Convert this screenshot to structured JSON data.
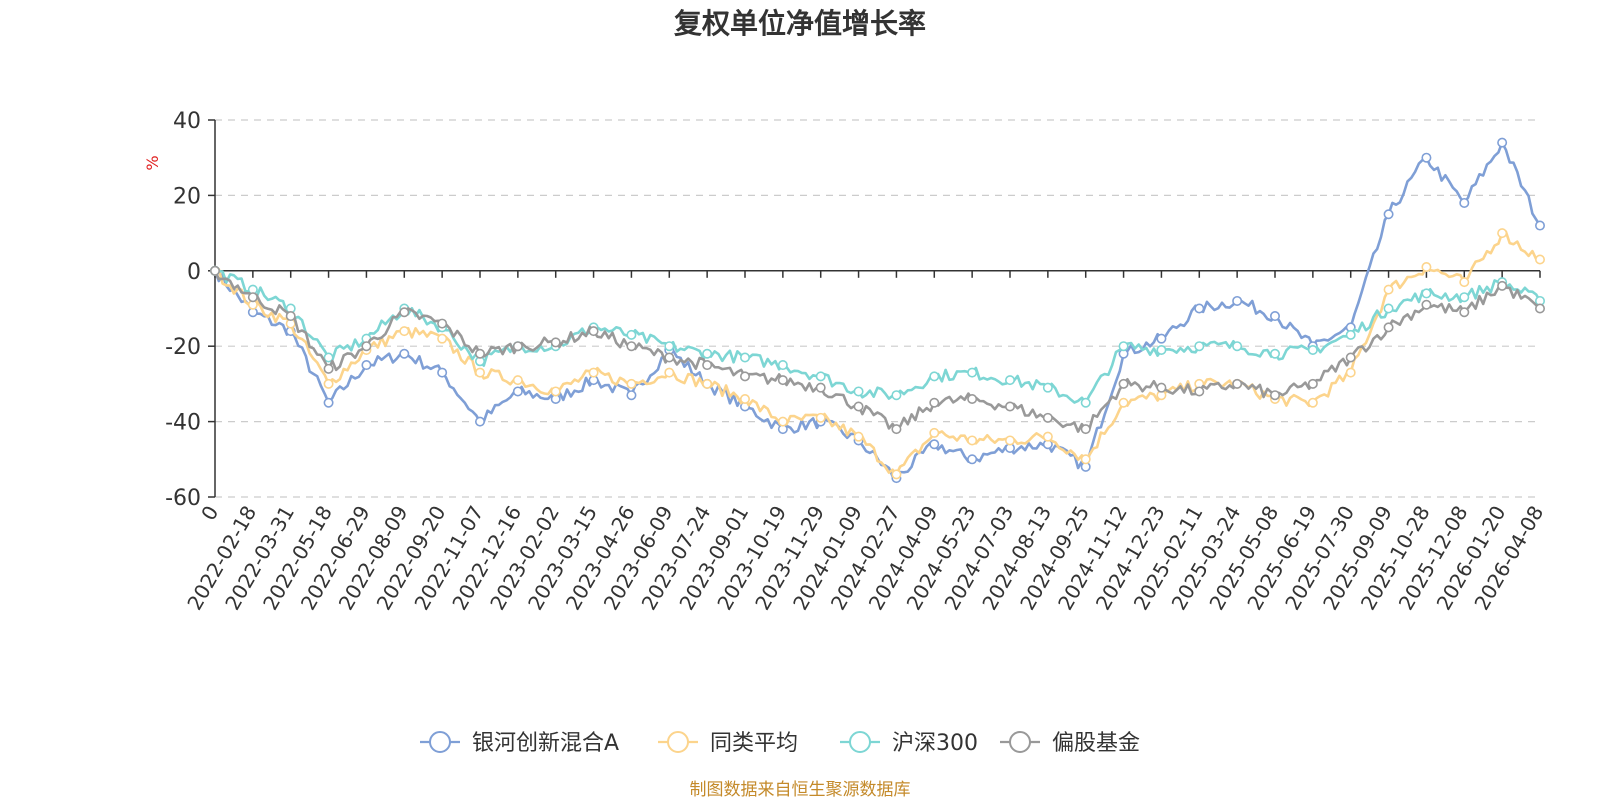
{
  "chart_data": {
    "type": "line",
    "title": "复权单位净值增长率",
    "ylabel": "%",
    "ylim": [
      -60,
      40
    ],
    "yticks": [
      "40",
      "20",
      "0",
      "-20",
      "-40",
      "-60"
    ],
    "ytick_values": [
      40,
      20,
      0,
      -20,
      -40,
      -60
    ],
    "x": [
      "0",
      "2022-02-18",
      "2022-03-31",
      "2022-05-18",
      "2022-06-29",
      "2022-08-09",
      "2022-09-20",
      "2022-11-07",
      "2022-12-16",
      "2023-02-02",
      "2023-03-15",
      "2023-04-26",
      "2023-06-09",
      "2023-07-24",
      "2023-09-01",
      "2023-10-19",
      "2023-11-29",
      "2024-01-09",
      "2024-02-27",
      "2024-04-09",
      "2024-05-23",
      "2024-07-03",
      "2024-08-13",
      "2024-09-25",
      "2024-11-12",
      "2024-12-23",
      "2025-02-11",
      "2025-03-24",
      "2025-05-08",
      "2025-06-19",
      "2025-07-30",
      "2025-09-09",
      "2025-10-28",
      "2025-12-08",
      "2026-01-20",
      "2026-04-08"
    ],
    "grid": "horizontal-dashed",
    "legend_position": "bottom-center",
    "series": [
      {
        "name": "银河创新混合A",
        "color": "#7f9fd6",
        "values": [
          0,
          -11,
          -16,
          -35,
          -25,
          -22,
          -27,
          -40,
          -32,
          -34,
          -29,
          -33,
          -21,
          -30,
          -36,
          -42,
          -40,
          -45,
          -55,
          -46,
          -50,
          -47,
          -46,
          -52,
          -22,
          -18,
          -10,
          -8,
          -12,
          -20,
          -15,
          15,
          30,
          18,
          34,
          12
        ]
      },
      {
        "name": "同类平均",
        "color": "#fcd48c",
        "values": [
          0,
          -9,
          -14,
          -30,
          -21,
          -16,
          -18,
          -27,
          -29,
          -32,
          -27,
          -30,
          -27,
          -30,
          -34,
          -40,
          -39,
          -44,
          -54,
          -43,
          -45,
          -45,
          -44,
          -50,
          -35,
          -33,
          -30,
          -30,
          -34,
          -35,
          -27,
          -5,
          1,
          -3,
          10,
          3
        ]
      },
      {
        "name": "沪深300",
        "color": "#7dd6d4",
        "values": [
          0,
          -5,
          -10,
          -23,
          -18,
          -10,
          -15,
          -24,
          -20,
          -20,
          -15,
          -17,
          -20,
          -22,
          -23,
          -25,
          -28,
          -32,
          -33,
          -28,
          -27,
          -29,
          -31,
          -35,
          -20,
          -21,
          -20,
          -20,
          -22,
          -21,
          -17,
          -10,
          -6,
          -7,
          -3,
          -8
        ]
      },
      {
        "name": "偏股基金",
        "color": "#999999",
        "values": [
          0,
          -7,
          -12,
          -26,
          -20,
          -11,
          -14,
          -22,
          -20,
          -19,
          -16,
          -20,
          -23,
          -25,
          -28,
          -29,
          -31,
          -36,
          -42,
          -35,
          -34,
          -36,
          -39,
          -42,
          -30,
          -31,
          -32,
          -30,
          -33,
          -30,
          -23,
          -15,
          -9,
          -11,
          -4,
          -10
        ]
      }
    ]
  },
  "source_note": "制图数据来自恒生聚源数据库",
  "colors": {
    "axis": "#333333",
    "grid": "#cccccc",
    "unit": "#e02020",
    "source": "#c48a2a"
  }
}
